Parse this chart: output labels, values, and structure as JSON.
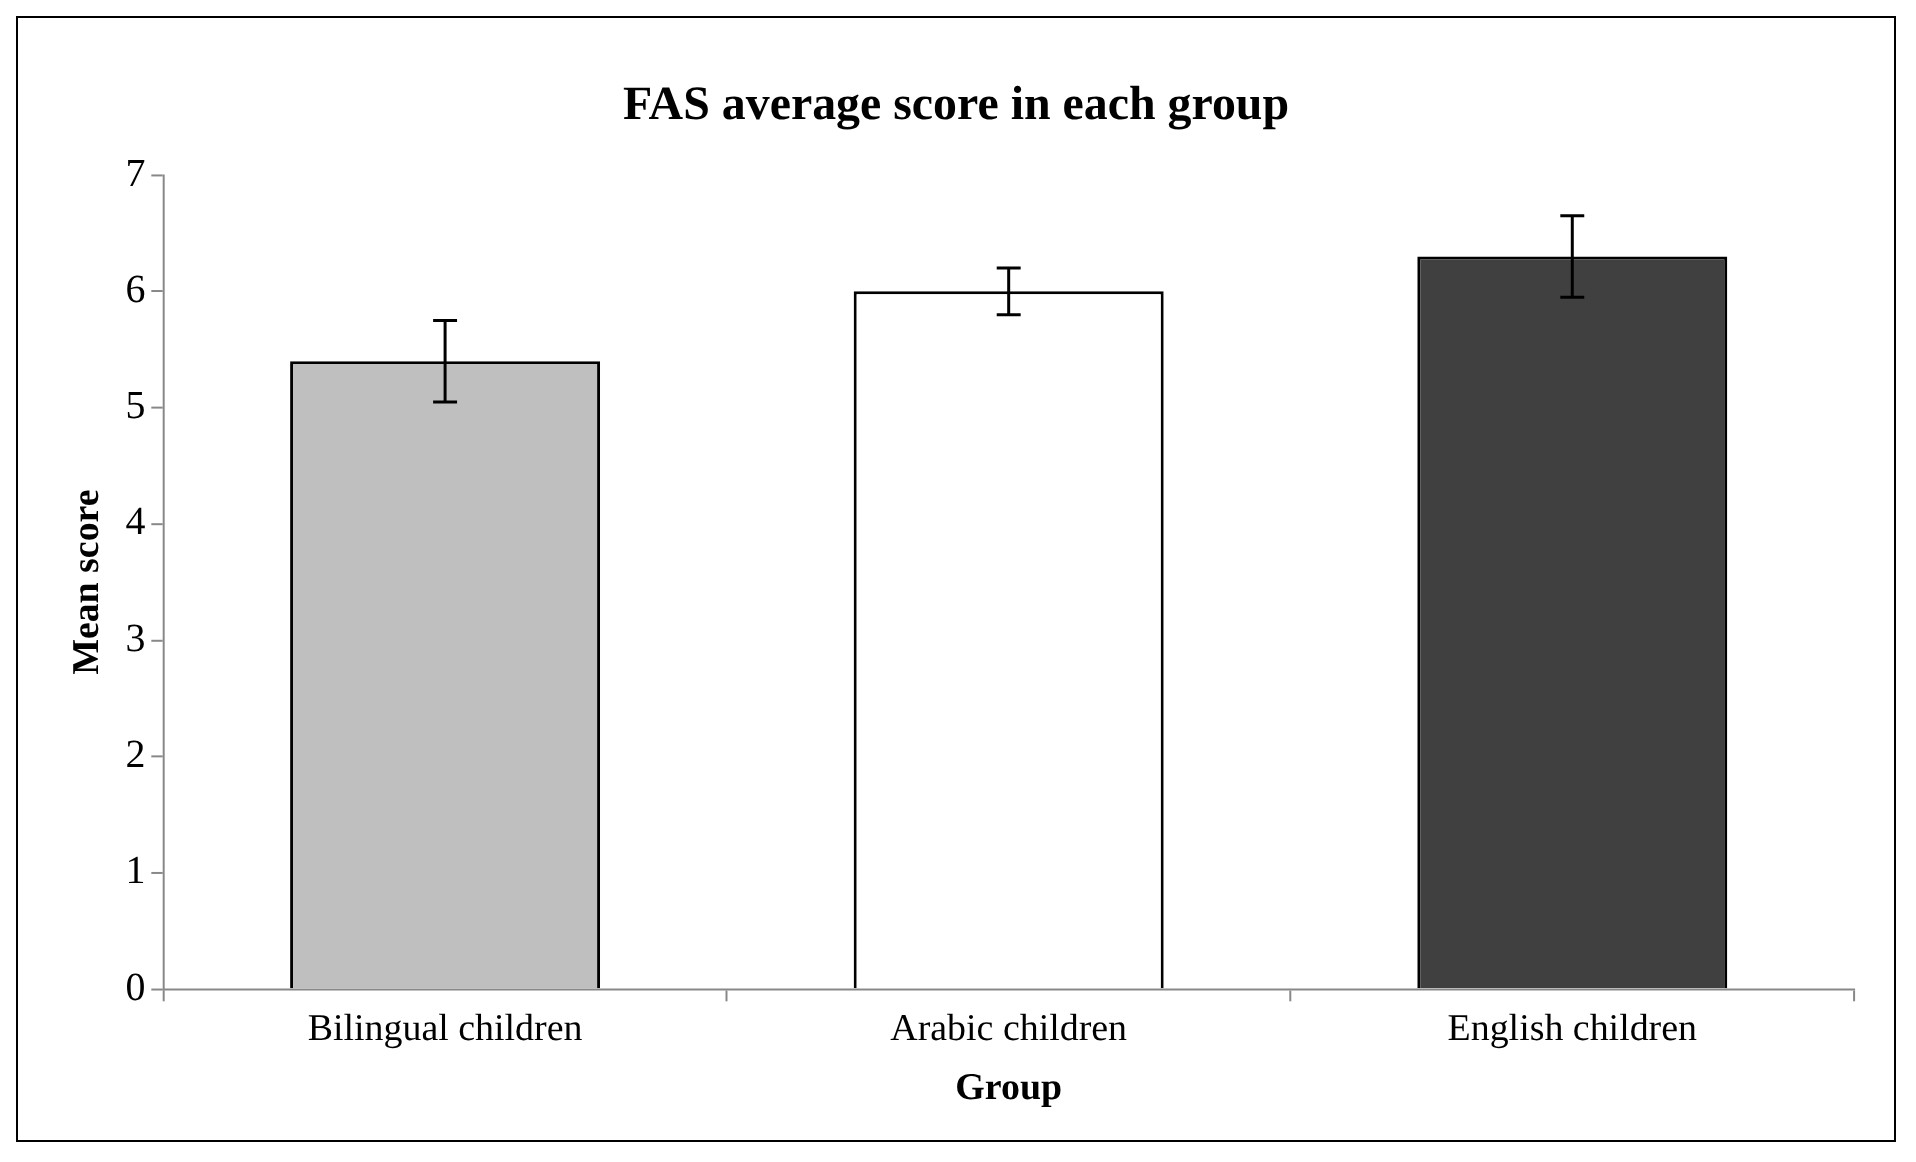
{
  "chart_data": {
    "type": "bar",
    "title": "FAS average score in each group",
    "xlabel": "Group",
    "ylabel": "Mean score",
    "categories": [
      "Bilingual children",
      "Arabic children",
      "English children"
    ],
    "values": [
      5.4,
      6.0,
      6.3
    ],
    "colors": [
      "#bfbfbf",
      "#ffffff",
      "#404040"
    ],
    "errors": [
      0.35,
      0.2,
      0.35
    ],
    "ylim": [
      0,
      7
    ],
    "yticks": [
      0,
      1,
      2,
      3,
      4,
      5,
      6,
      7
    ],
    "grid": false,
    "legend": false
  }
}
